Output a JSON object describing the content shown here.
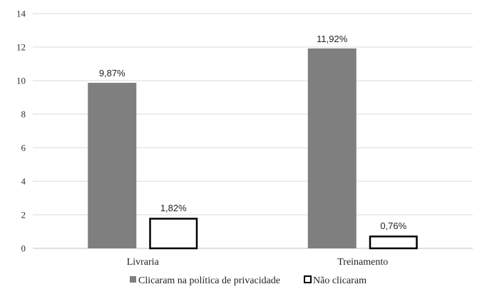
{
  "chart_data": {
    "type": "bar",
    "categories": [
      "Livraria",
      "Treinamento"
    ],
    "series": [
      {
        "name": "Clicaram na política de privacidade",
        "values": [
          9.87,
          11.92
        ],
        "labels": [
          "9,87%",
          "11,92%"
        ],
        "color": "#7f7f7f"
      },
      {
        "name": "Não clicaram",
        "values": [
          1.82,
          0.76
        ],
        "labels": [
          "1,82%",
          "0,76%"
        ],
        "color": "#ffffff",
        "stroke": "#000000"
      }
    ],
    "ylim": [
      0,
      14
    ],
    "yticks": [
      0,
      2,
      4,
      6,
      8,
      10,
      12,
      14
    ],
    "grid": true,
    "legend_position": "bottom",
    "gridline_color": "#d9d9d9",
    "axis_color": "#bfbfbf"
  }
}
